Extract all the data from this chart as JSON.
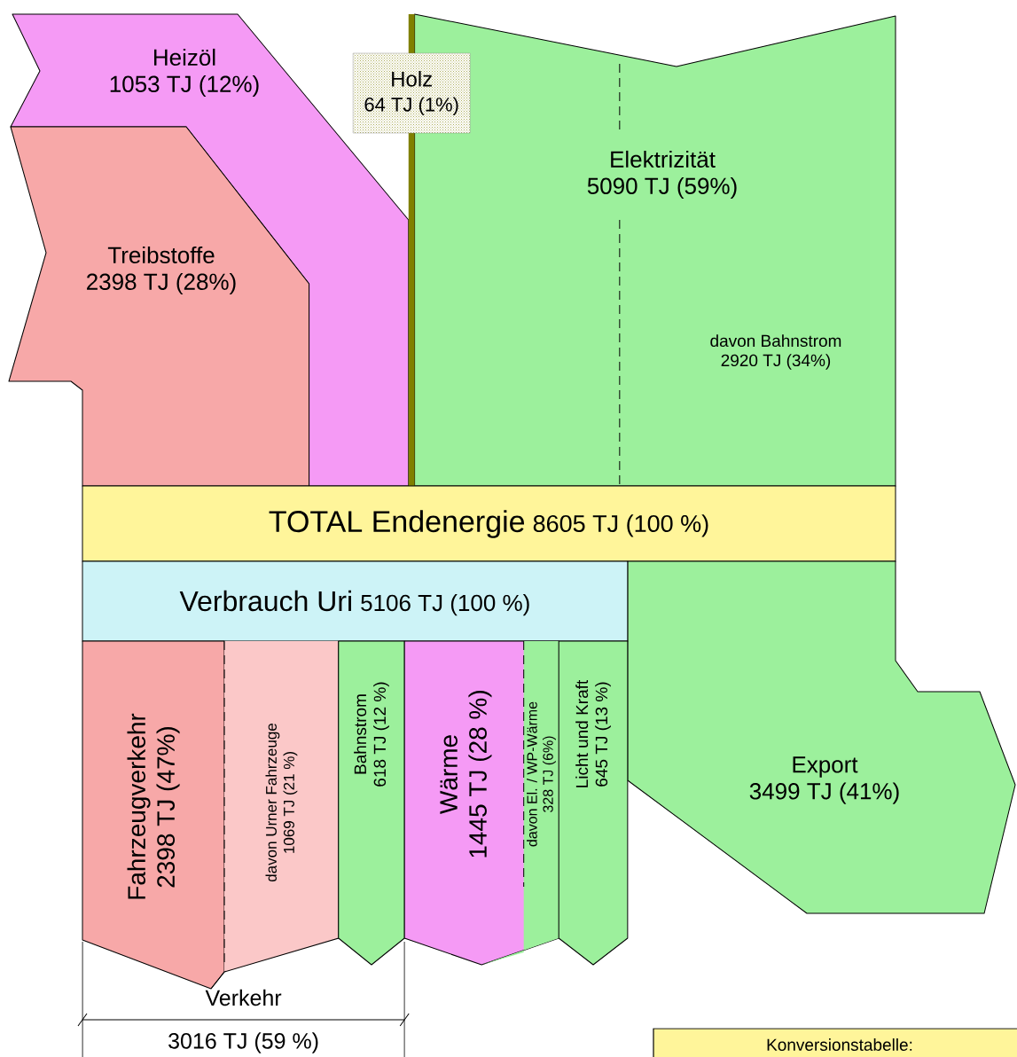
{
  "chart_data": {
    "type": "other",
    "categories": [
      "Heizöl",
      "Treibstoffe",
      "Holz",
      "Elektrizität",
      "davon Bahnstrom",
      "TOTAL Endenergie",
      "Verbrauch Uri",
      "Export",
      "Fahrzeugverkehr",
      "davon Urner Fahrzeuge",
      "Bahnstrom",
      "Wärme",
      "davon El. / WP-Wärme",
      "Licht und Kraft",
      "Verkehr"
    ],
    "values": [
      1053,
      2398,
      64,
      5090,
      2920,
      8605,
      5106,
      3499,
      2398,
      1069,
      618,
      1445,
      328,
      645,
      3016
    ],
    "value_labels": [
      "1053 TJ  (12%)",
      "2398 TJ  (28%)",
      "64 TJ (1%)",
      "5090 TJ  (59%)",
      "2920 TJ  (34%)",
      "8605 TJ   (100 %)",
      "5106 TJ  (100 %)",
      "3499 TJ  (41%)",
      "2398 TJ  (47%)",
      "1069 TJ  (21 %)",
      "618 TJ  (12 %)",
      "1445 TJ  (28 %)",
      "328 TJ  (6%)",
      "645 TJ  (13 %)",
      "3016 TJ  (59 %)"
    ],
    "colors": [
      "#f59af5",
      "#f7a8a8",
      "#808000",
      "#9cf09c",
      "#9cf09c",
      "#fff59a",
      "#cdf3f7",
      "#9cf09c",
      "#f7a8a8",
      "#fbc8c8",
      "#9cf09c",
      "#f59af5",
      "#9cf09c",
      "#9cf09c",
      "#000000"
    ],
    "annotations": [
      "Konversionstabelle:"
    ]
  }
}
